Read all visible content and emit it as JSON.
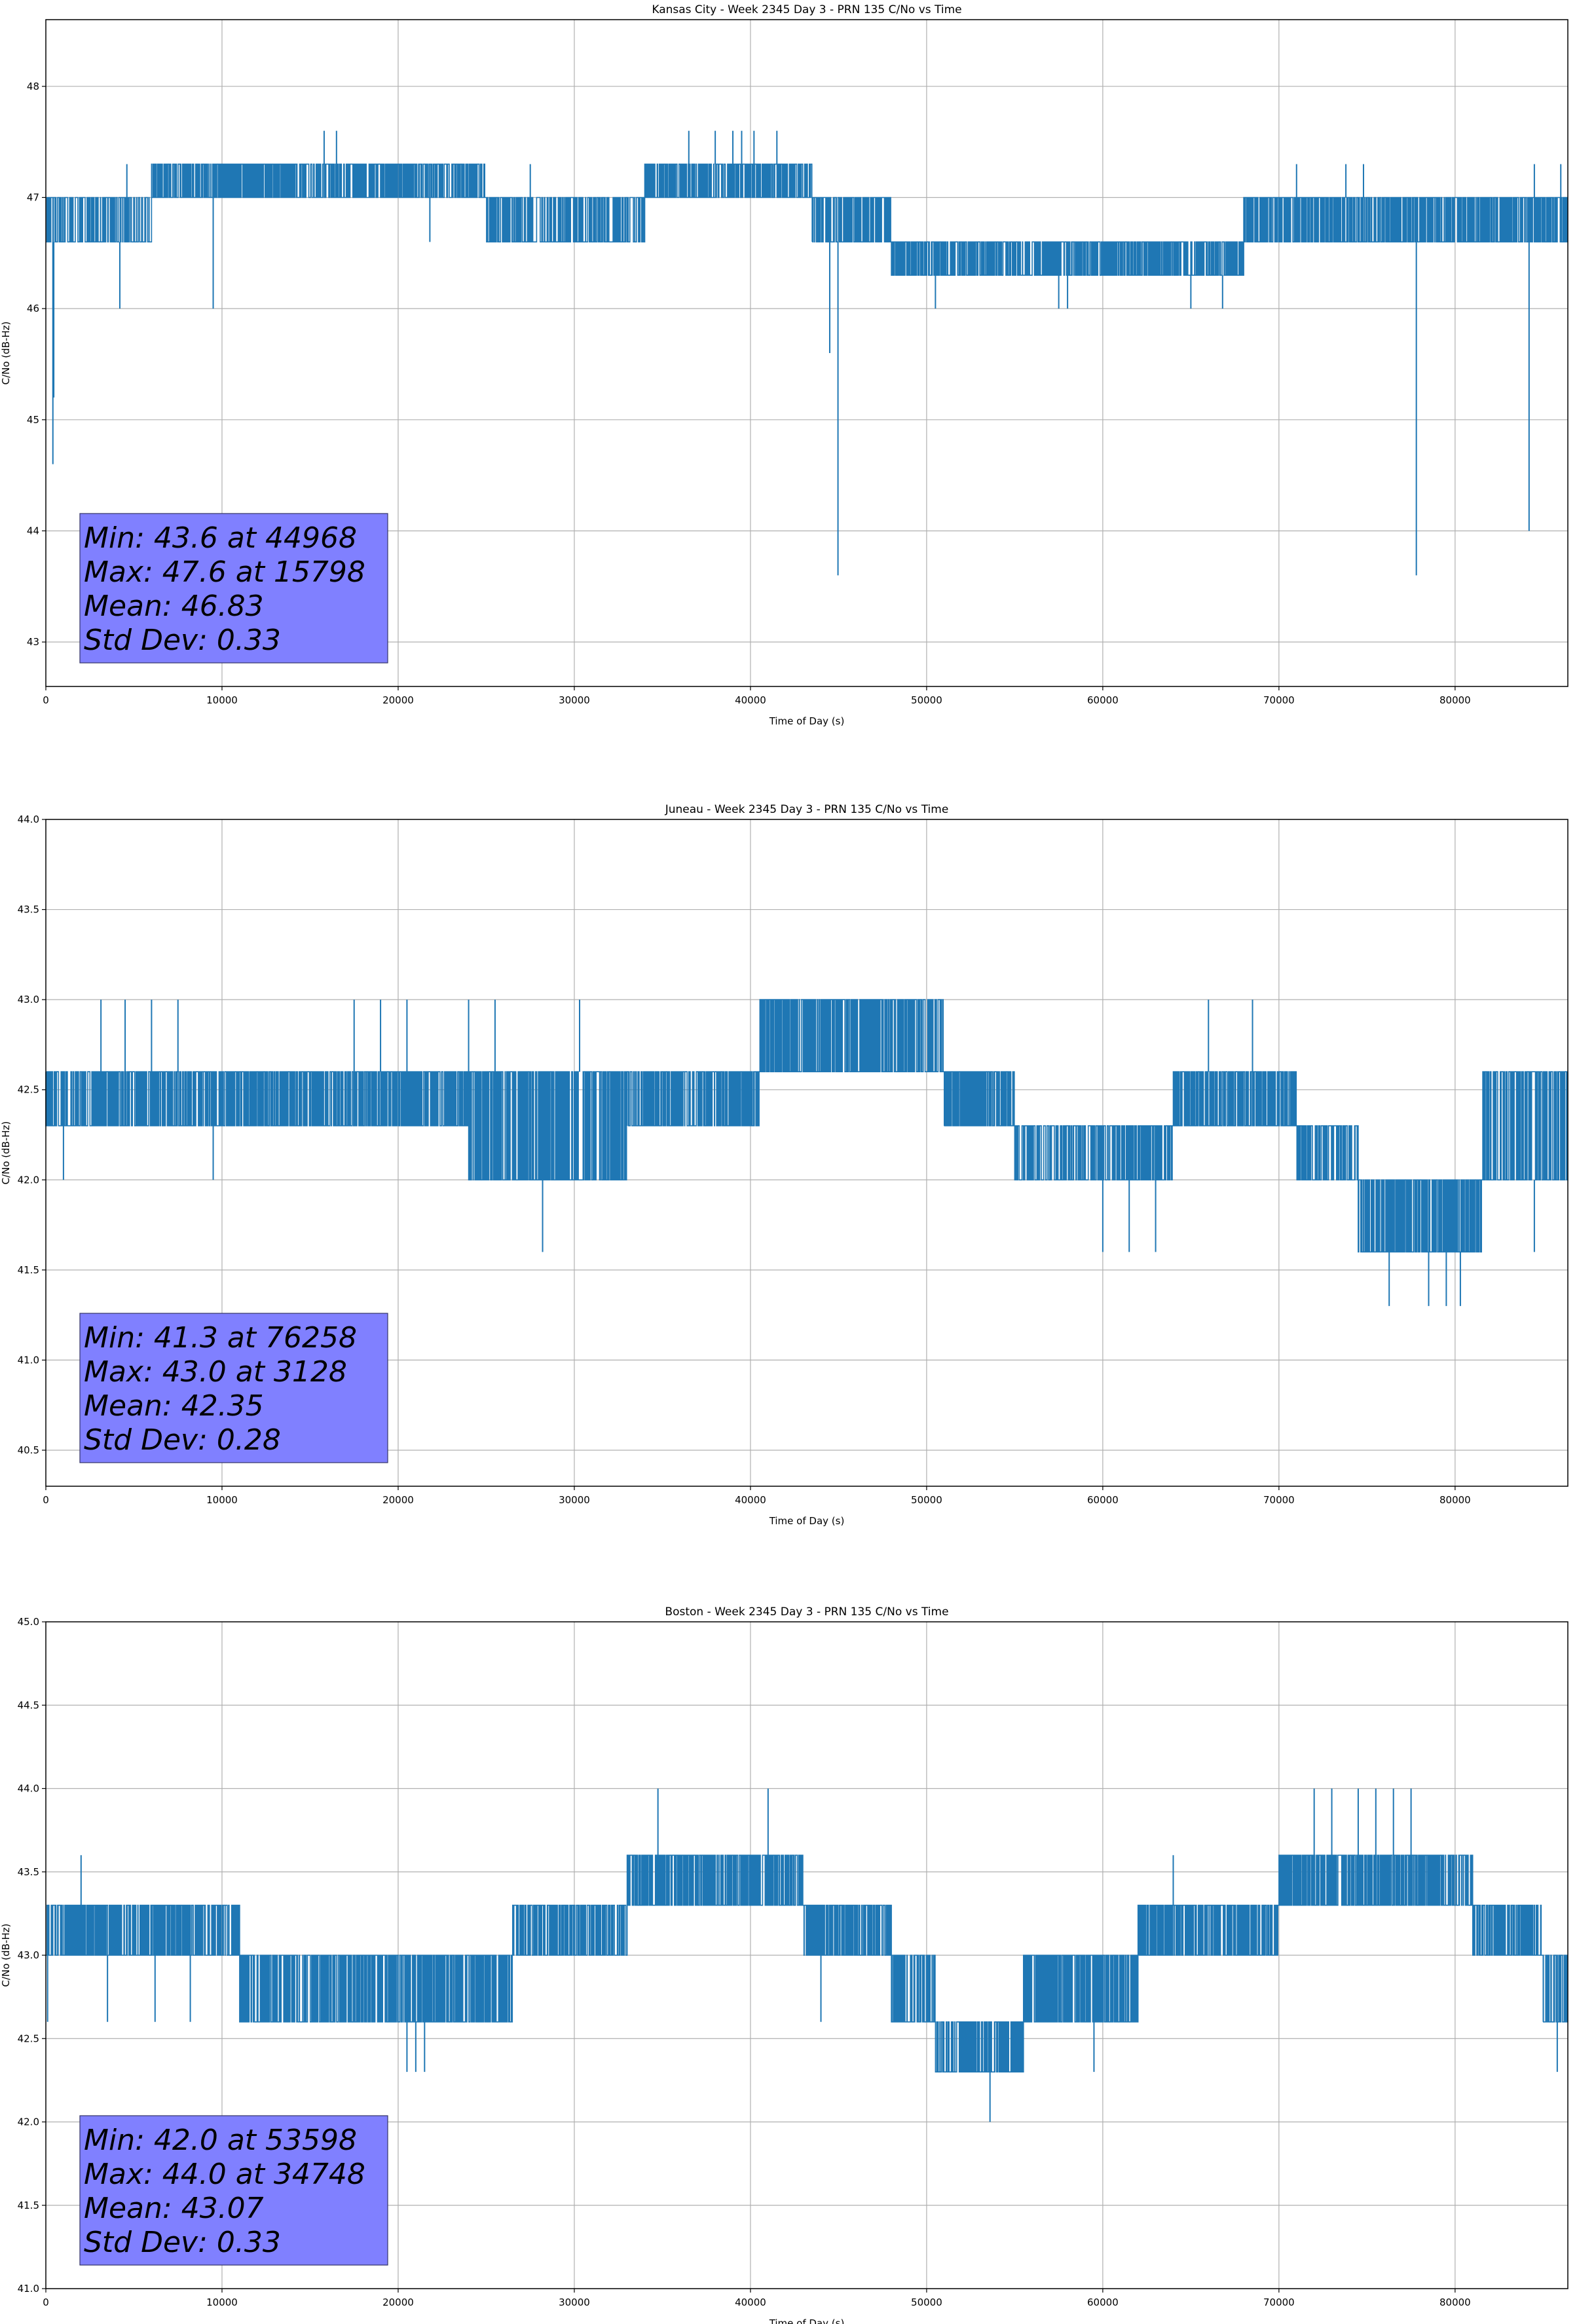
{
  "chart_data": [
    {
      "type": "line",
      "title": "Kansas City - Week 2345 Day 3 - PRN 135 C/No vs Time",
      "xlabel": "Time of Day (s)",
      "ylabel": "C/No (dB-Hz)",
      "xlim": [
        0,
        86400
      ],
      "ylim": [
        42.6,
        48.6
      ],
      "xticks": [
        "0",
        "10000",
        "20000",
        "30000",
        "40000",
        "50000",
        "60000",
        "70000",
        "80000"
      ],
      "yticks": [
        "43",
        "44",
        "45",
        "46",
        "47",
        "48"
      ],
      "grid": true,
      "series": [
        {
          "name": "C/No",
          "color": "#1f77b4",
          "segments": [
            {
              "t": [
                0,
                6000
              ],
              "levels": [
                46.6,
                47.0
              ],
              "rate": 0.35
            },
            {
              "t": [
                6000,
                25000
              ],
              "levels": [
                47.0,
                47.3
              ],
              "rate": 0.5
            },
            {
              "t": [
                25000,
                34000
              ],
              "levels": [
                46.6,
                47.0
              ],
              "rate": 0.4
            },
            {
              "t": [
                34000,
                43500
              ],
              "levels": [
                47.0,
                47.3
              ],
              "rate": 0.5
            },
            {
              "t": [
                43500,
                48000
              ],
              "levels": [
                46.6,
                47.0
              ],
              "rate": 0.45
            },
            {
              "t": [
                48000,
                68000
              ],
              "levels": [
                46.3,
                46.6
              ],
              "rate": 0.5
            },
            {
              "t": [
                68000,
                86400
              ],
              "levels": [
                46.6,
                47.0
              ],
              "rate": 0.5
            }
          ],
          "spikes": [
            [
              400,
              44.6
            ],
            [
              450,
              45.2
            ],
            [
              4200,
              46.0
            ],
            [
              4600,
              47.3
            ],
            [
              9500,
              46.0
            ],
            [
              15798,
              47.6
            ],
            [
              16500,
              47.6
            ],
            [
              21800,
              46.6
            ],
            [
              27500,
              47.3
            ],
            [
              36500,
              47.6
            ],
            [
              38000,
              47.6
            ],
            [
              39000,
              47.6
            ],
            [
              39500,
              47.6
            ],
            [
              40200,
              47.6
            ],
            [
              41500,
              47.6
            ],
            [
              44500,
              45.6
            ],
            [
              44968,
              43.6
            ],
            [
              50500,
              46.0
            ],
            [
              57500,
              46.0
            ],
            [
              58000,
              46.0
            ],
            [
              65000,
              46.0
            ],
            [
              66800,
              46.0
            ],
            [
              71000,
              47.3
            ],
            [
              73800,
              47.3
            ],
            [
              74800,
              47.3
            ],
            [
              77800,
              43.6
            ],
            [
              84200,
              44.0
            ],
            [
              84500,
              47.3
            ],
            [
              86000,
              47.3
            ]
          ]
        }
      ],
      "stats_box": [
        "Min: 43.6 at 44968",
        "Max: 47.6 at 15798",
        "Mean: 46.83",
        "Std Dev: 0.33"
      ]
    },
    {
      "type": "line",
      "title": "Juneau - Week 2345 Day 3 - PRN 135 C/No vs Time",
      "xlabel": "Time of Day (s)",
      "ylabel": "C/No (dB-Hz)",
      "xlim": [
        0,
        86400
      ],
      "ylim": [
        40.3,
        44.0
      ],
      "xticks": [
        "0",
        "10000",
        "20000",
        "30000",
        "40000",
        "50000",
        "60000",
        "70000",
        "80000"
      ],
      "yticks": [
        "40.5",
        "41.0",
        "41.5",
        "42.0",
        "42.5",
        "43.0",
        "43.5",
        "44.0"
      ],
      "grid": true,
      "series": [
        {
          "name": "C/No",
          "color": "#1f77b4",
          "segments": [
            {
              "t": [
                0,
                24000
              ],
              "levels": [
                42.3,
                42.6
              ],
              "rate": 0.5
            },
            {
              "t": [
                24000,
                33000
              ],
              "levels": [
                42.0,
                42.6
              ],
              "rate": 0.5
            },
            {
              "t": [
                33000,
                40500
              ],
              "levels": [
                42.3,
                42.6
              ],
              "rate": 0.5
            },
            {
              "t": [
                40500,
                51000
              ],
              "levels": [
                42.6,
                43.0
              ],
              "rate": 0.5
            },
            {
              "t": [
                51000,
                55000
              ],
              "levels": [
                42.3,
                42.6
              ],
              "rate": 0.5
            },
            {
              "t": [
                55000,
                64000
              ],
              "levels": [
                42.0,
                42.3
              ],
              "rate": 0.35
            },
            {
              "t": [
                64000,
                71000
              ],
              "levels": [
                42.3,
                42.6
              ],
              "rate": 0.5
            },
            {
              "t": [
                71000,
                74500
              ],
              "levels": [
                42.0,
                42.3
              ],
              "rate": 0.4
            },
            {
              "t": [
                74500,
                81500
              ],
              "levels": [
                41.6,
                42.0
              ],
              "rate": 0.5
            },
            {
              "t": [
                81500,
                86400
              ],
              "levels": [
                42.0,
                42.6
              ],
              "rate": 0.4
            }
          ],
          "spikes": [
            [
              1000,
              42.0
            ],
            [
              3128,
              43.0
            ],
            [
              4500,
              43.0
            ],
            [
              6000,
              43.0
            ],
            [
              7500,
              43.0
            ],
            [
              9500,
              42.0
            ],
            [
              17500,
              43.0
            ],
            [
              19000,
              43.0
            ],
            [
              20500,
              43.0
            ],
            [
              24000,
              43.0
            ],
            [
              25500,
              43.0
            ],
            [
              28200,
              41.6
            ],
            [
              30300,
              43.0
            ],
            [
              60000,
              41.6
            ],
            [
              61500,
              41.6
            ],
            [
              63000,
              41.6
            ],
            [
              66000,
              43.0
            ],
            [
              68500,
              43.0
            ],
            [
              76258,
              41.3
            ],
            [
              78500,
              41.3
            ],
            [
              79500,
              41.3
            ],
            [
              80300,
              41.3
            ],
            [
              84500,
              41.6
            ],
            [
              85500,
              42.6
            ]
          ]
        }
      ],
      "stats_box": [
        "Min: 41.3 at 76258",
        "Max: 43.0 at 3128",
        "Mean: 42.35",
        "Std Dev: 0.28"
      ]
    },
    {
      "type": "line",
      "title": "Boston - Week 2345 Day 3 - PRN 135 C/No vs Time",
      "xlabel": "Time of Day (s)",
      "ylabel": "C/No (dB-Hz)",
      "xlim": [
        0,
        86400
      ],
      "ylim": [
        41.0,
        45.0
      ],
      "xticks": [
        "0",
        "10000",
        "20000",
        "30000",
        "40000",
        "50000",
        "60000",
        "70000",
        "80000"
      ],
      "yticks": [
        "41.0",
        "41.5",
        "42.0",
        "42.5",
        "43.0",
        "43.5",
        "44.0",
        "44.5",
        "45.0"
      ],
      "grid": true,
      "series": [
        {
          "name": "C/No",
          "color": "#1f77b4",
          "segments": [
            {
              "t": [
                0,
                11000
              ],
              "levels": [
                43.0,
                43.3
              ],
              "rate": 0.5
            },
            {
              "t": [
                11000,
                26500
              ],
              "levels": [
                42.6,
                43.0
              ],
              "rate": 0.5
            },
            {
              "t": [
                26500,
                33000
              ],
              "levels": [
                43.0,
                43.3
              ],
              "rate": 0.45
            },
            {
              "t": [
                33000,
                43000
              ],
              "levels": [
                43.3,
                43.6
              ],
              "rate": 0.5
            },
            {
              "t": [
                43000,
                48000
              ],
              "levels": [
                43.0,
                43.3
              ],
              "rate": 0.5
            },
            {
              "t": [
                48000,
                50500
              ],
              "levels": [
                42.6,
                43.0
              ],
              "rate": 0.5
            },
            {
              "t": [
                50500,
                55500
              ],
              "levels": [
                42.3,
                42.6
              ],
              "rate": 0.5
            },
            {
              "t": [
                55500,
                62000
              ],
              "levels": [
                42.6,
                43.0
              ],
              "rate": 0.5
            },
            {
              "t": [
                62000,
                70000
              ],
              "levels": [
                43.0,
                43.3
              ],
              "rate": 0.5
            },
            {
              "t": [
                70000,
                81000
              ],
              "levels": [
                43.3,
                43.6
              ],
              "rate": 0.5
            },
            {
              "t": [
                81000,
                85000
              ],
              "levels": [
                43.0,
                43.3
              ],
              "rate": 0.5
            },
            {
              "t": [
                85000,
                86400
              ],
              "levels": [
                42.6,
                43.0
              ],
              "rate": 0.5
            }
          ],
          "spikes": [
            [
              100,
              42.6
            ],
            [
              2000,
              43.6
            ],
            [
              3500,
              42.6
            ],
            [
              6200,
              42.6
            ],
            [
              8200,
              42.6
            ],
            [
              20500,
              42.3
            ],
            [
              21000,
              42.3
            ],
            [
              21500,
              42.3
            ],
            [
              34748,
              44.0
            ],
            [
              41000,
              44.0
            ],
            [
              44000,
              42.6
            ],
            [
              53598,
              42.0
            ],
            [
              59500,
              42.3
            ],
            [
              64000,
              43.6
            ],
            [
              72000,
              44.0
            ],
            [
              73000,
              44.0
            ],
            [
              74500,
              44.0
            ],
            [
              75500,
              44.0
            ],
            [
              76500,
              44.0
            ],
            [
              77500,
              44.0
            ],
            [
              85800,
              42.3
            ]
          ]
        }
      ],
      "stats_box": [
        "Min: 42.0 at 53598",
        "Max: 44.0 at 34748",
        "Mean: 43.07",
        "Std Dev: 0.33"
      ]
    }
  ]
}
